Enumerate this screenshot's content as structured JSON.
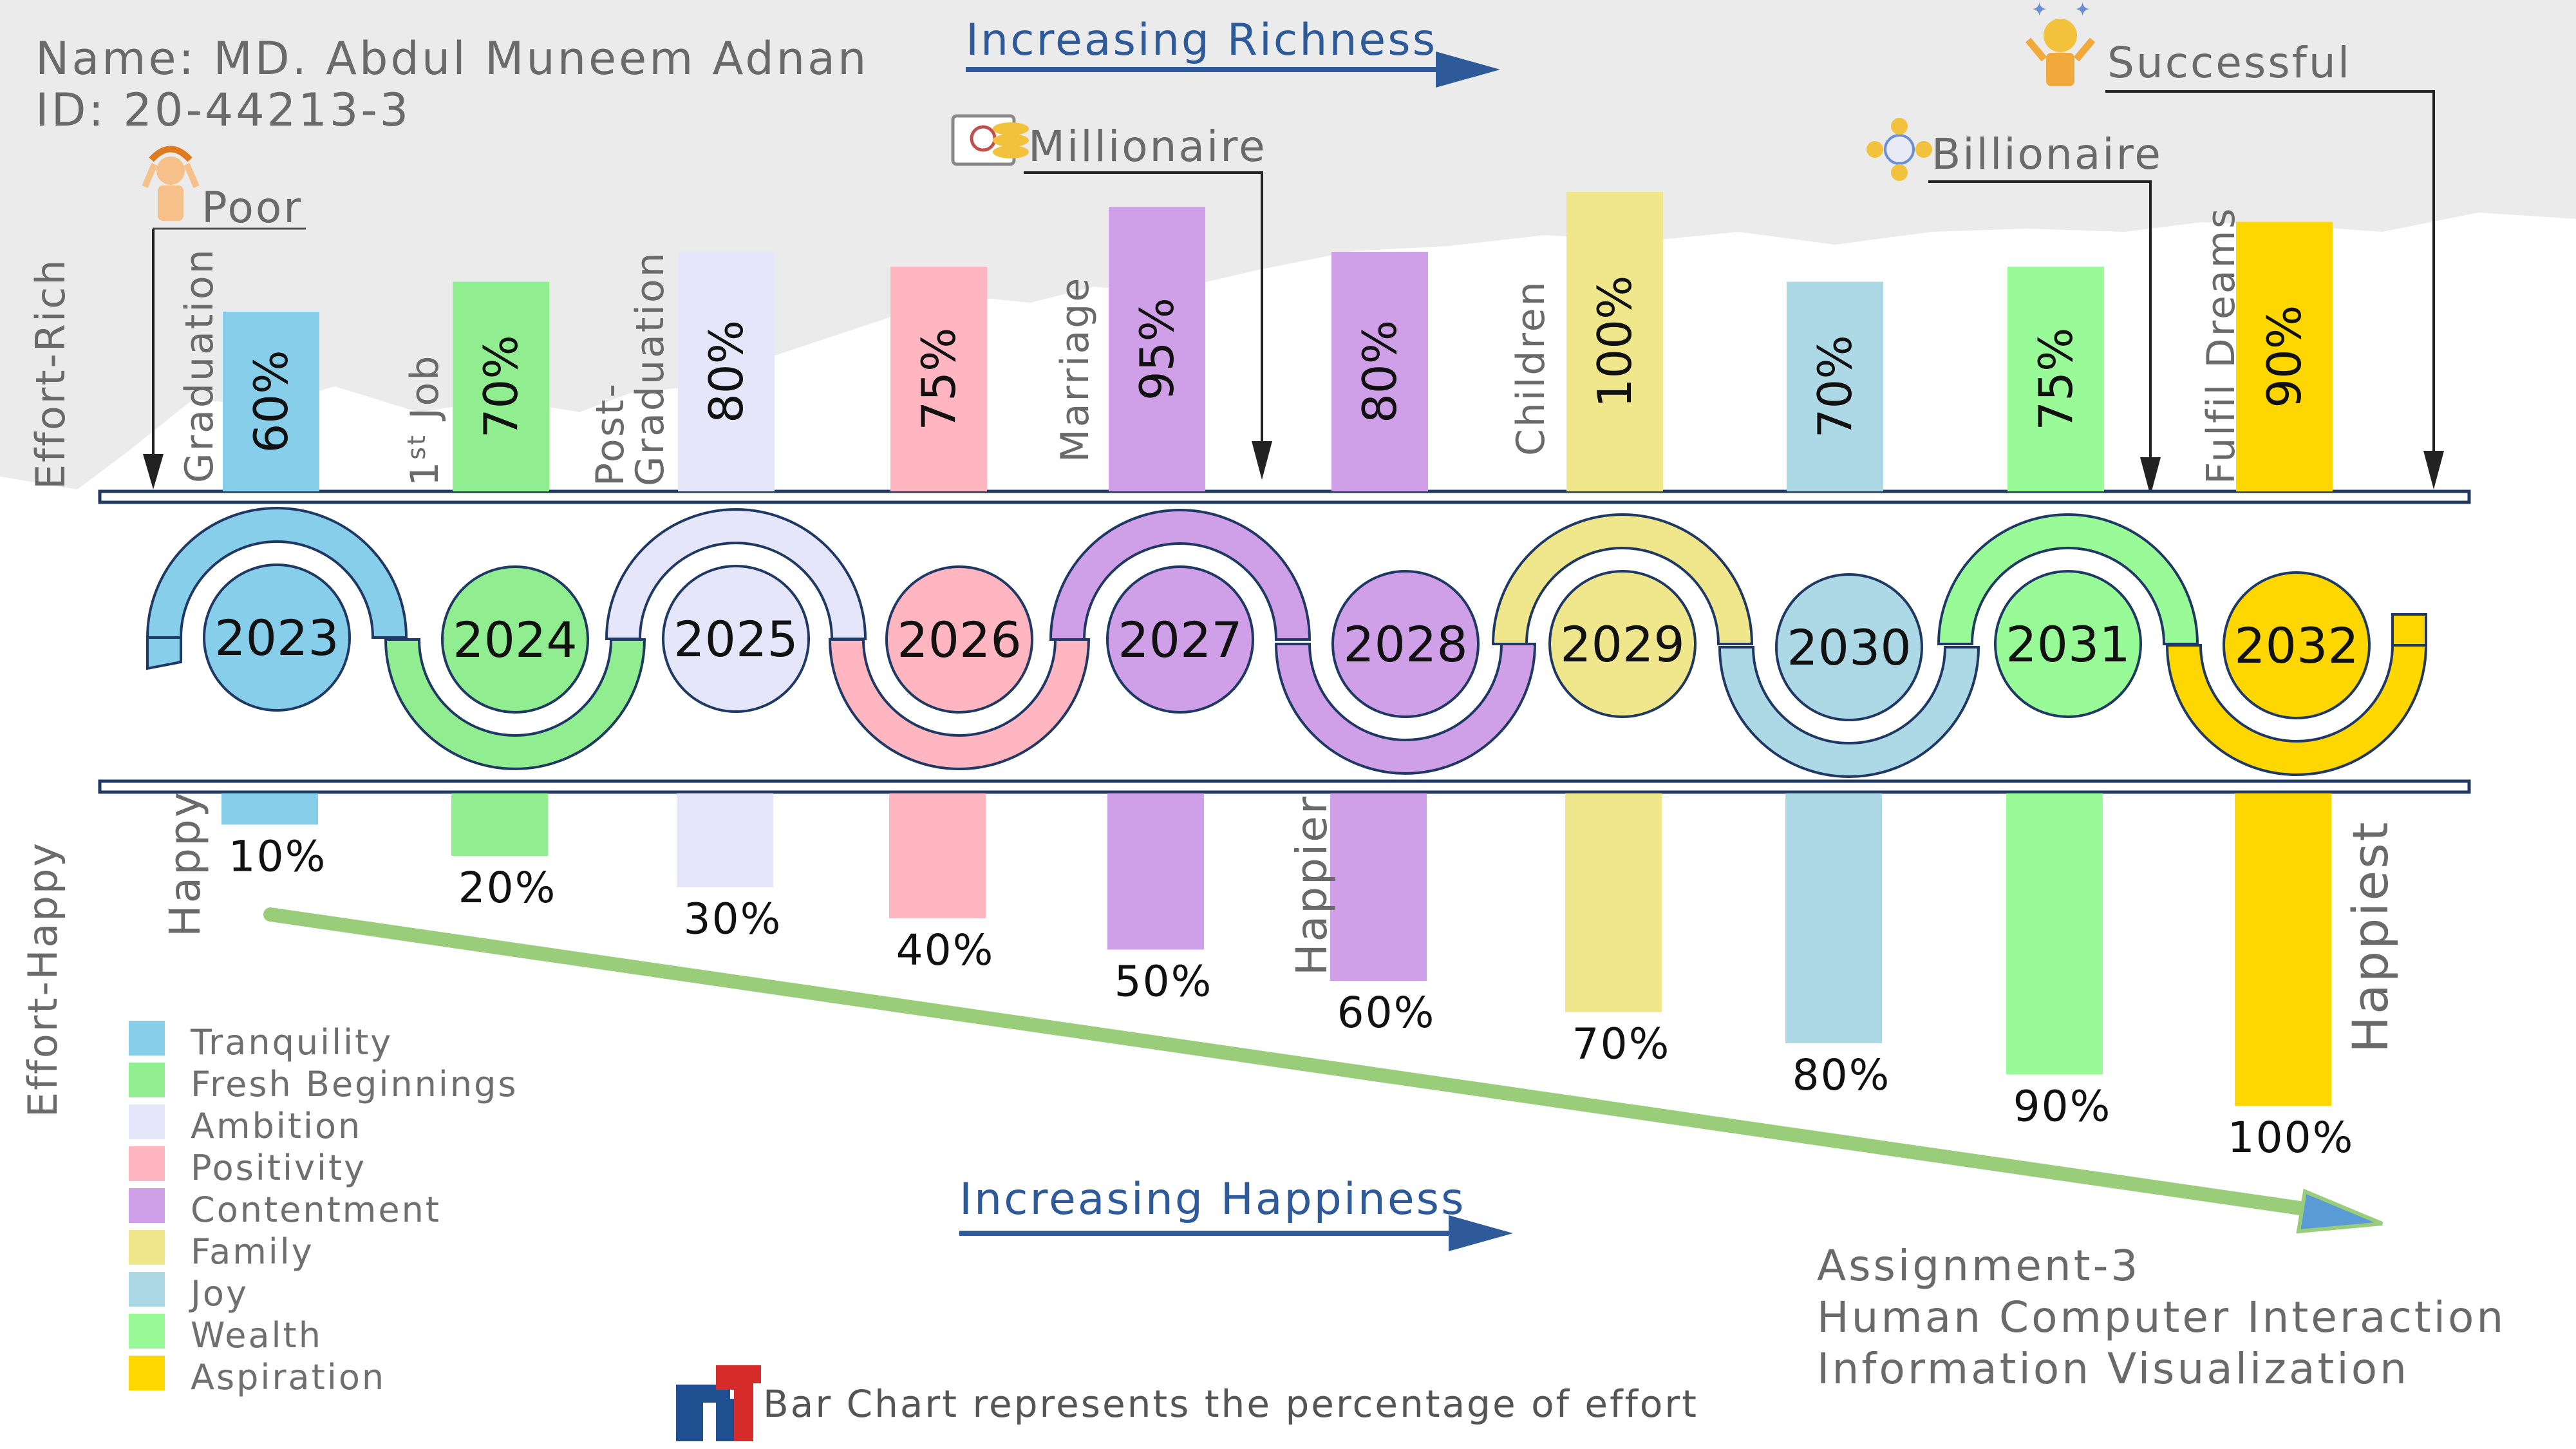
{
  "student": {
    "name": "Name: MD. Abdul Muneem Adnan",
    "id": "ID: 20-44213-3"
  },
  "footer": {
    "assignment": "Assignment-3",
    "course": "Human Computer Interaction",
    "topic": "Information Visualization",
    "note": "Bar Chart represents the percentage of effort"
  },
  "arrows": {
    "richness": "Increasing Richness",
    "happiness": "Increasing Happiness"
  },
  "axis_labels": {
    "top": "Effort-Rich",
    "bottom": "Effort-Happy"
  },
  "milestones": {
    "poor": "Poor",
    "millionaire": "Millionaire",
    "billionaire": "Billionaire",
    "successful": "Successful"
  },
  "events": [
    "Graduation",
    "1st Job",
    "Post-Graduation",
    "Marriage",
    "Children",
    "Fulfil Dreams"
  ],
  "happy_labels": [
    "Happy",
    "Happier",
    "Happiest"
  ],
  "colors": {
    "Tranquility": "#87ceeb",
    "Fresh Beginnings": "#90ee90",
    "Ambition": "#e6e6fa",
    "Positivity": "#ffb6c1",
    "Contentment": "#cf9fe8",
    "Family": "#f0e68c",
    "Joy": "#add8e6",
    "Wealth": "#98fb98",
    "Aspiration": "#ffd700",
    "arrow": "#2e5a9a",
    "trend": "#9acd7a"
  },
  "legend": [
    {
      "label": "Tranquility",
      "color": "#87ceeb"
    },
    {
      "label": "Fresh Beginnings",
      "color": "#90ee90"
    },
    {
      "label": "Ambition",
      "color": "#e6e6fa"
    },
    {
      "label": "Positivity",
      "color": "#ffb6c1"
    },
    {
      "label": "Contentment",
      "color": "#cf9fe8"
    },
    {
      "label": "Family",
      "color": "#f0e68c"
    },
    {
      "label": "Joy",
      "color": "#add8e6"
    },
    {
      "label": "Wealth",
      "color": "#98fb98"
    },
    {
      "label": "Aspiration",
      "color": "#ffd700"
    }
  ],
  "chart_data": {
    "type": "bar",
    "categories": [
      "2023",
      "2024",
      "2025",
      "2026",
      "2027",
      "2028",
      "2029",
      "2030",
      "2031",
      "2032"
    ],
    "series": [
      {
        "name": "Effort-Rich",
        "values": [
          60,
          70,
          80,
          75,
          95,
          80,
          100,
          70,
          75,
          90
        ],
        "labels": [
          "60%",
          "70%",
          "80%",
          "75%",
          "95%",
          "80%",
          "100%",
          "70%",
          "75%",
          "90%"
        ]
      },
      {
        "name": "Effort-Happy",
        "values": [
          10,
          20,
          30,
          40,
          50,
          60,
          70,
          80,
          90,
          100
        ],
        "labels": [
          "10%",
          "20%",
          "30%",
          "40%",
          "50%",
          "60%",
          "70%",
          "80%",
          "90%",
          "100%"
        ]
      }
    ],
    "bar_colors": [
      "#87ceeb",
      "#90ee90",
      "#e6e6fa",
      "#ffb6c1",
      "#cf9fe8",
      "#cf9fe8",
      "#f0e68c",
      "#add8e6",
      "#98fb98",
      "#ffd700"
    ],
    "ylim": [
      0,
      100
    ]
  }
}
